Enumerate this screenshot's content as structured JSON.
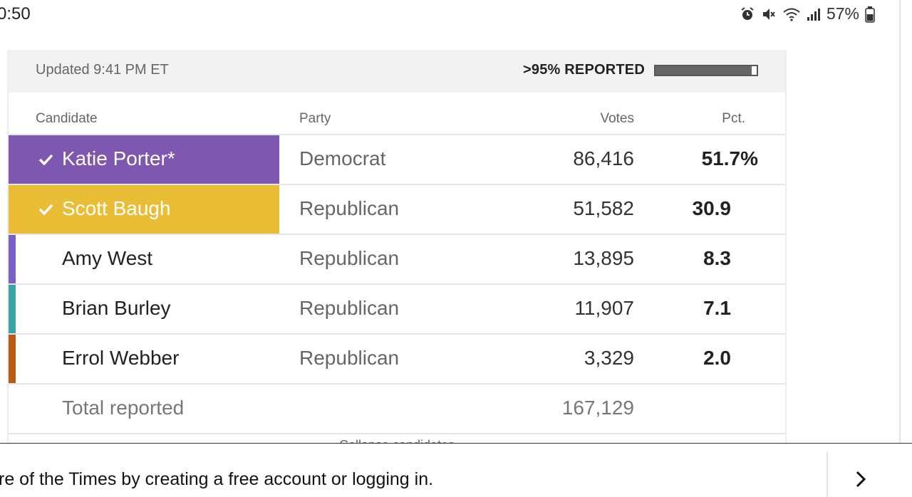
{
  "status_bar": {
    "time": "0:50",
    "battery": "57%",
    "icons": [
      "alarm-icon",
      "muted-icon",
      "wifi-icon",
      "signal-icon",
      "battery-icon"
    ]
  },
  "results": {
    "updated": "Updated 9:41 PM ET",
    "reported_label": ">95% REPORTED",
    "reported_fraction": 0.95,
    "columns": {
      "candidate": "Candidate",
      "party": "Party",
      "votes": "Votes",
      "pct": "Pct."
    },
    "rows": [
      {
        "name": "Katie Porter*",
        "party": "Democrat",
        "votes": "86,416",
        "pct": "51.7%",
        "winner": true,
        "color": "#7e57b0"
      },
      {
        "name": "Scott Baugh",
        "party": "Republican",
        "votes": "51,582",
        "pct": "30.9",
        "winner": true,
        "color": "#e9bd36"
      },
      {
        "name": "Amy West",
        "party": "Republican",
        "votes": "13,895",
        "pct": "8.3",
        "winner": false,
        "color": "#7860c7"
      },
      {
        "name": "Brian Burley",
        "party": "Republican",
        "votes": "11,907",
        "pct": "7.1",
        "winner": false,
        "color": "#3aa3a3"
      },
      {
        "name": "Errol Webber",
        "party": "Republican",
        "votes": "3,329",
        "pct": "2.0",
        "winner": false,
        "color": "#b85b14"
      }
    ],
    "total": {
      "label": "Total reported",
      "votes": "167,129"
    },
    "collapse_label": "Collapse candidates"
  },
  "banner": {
    "text": "re of the Times by creating a free account or logging in."
  }
}
